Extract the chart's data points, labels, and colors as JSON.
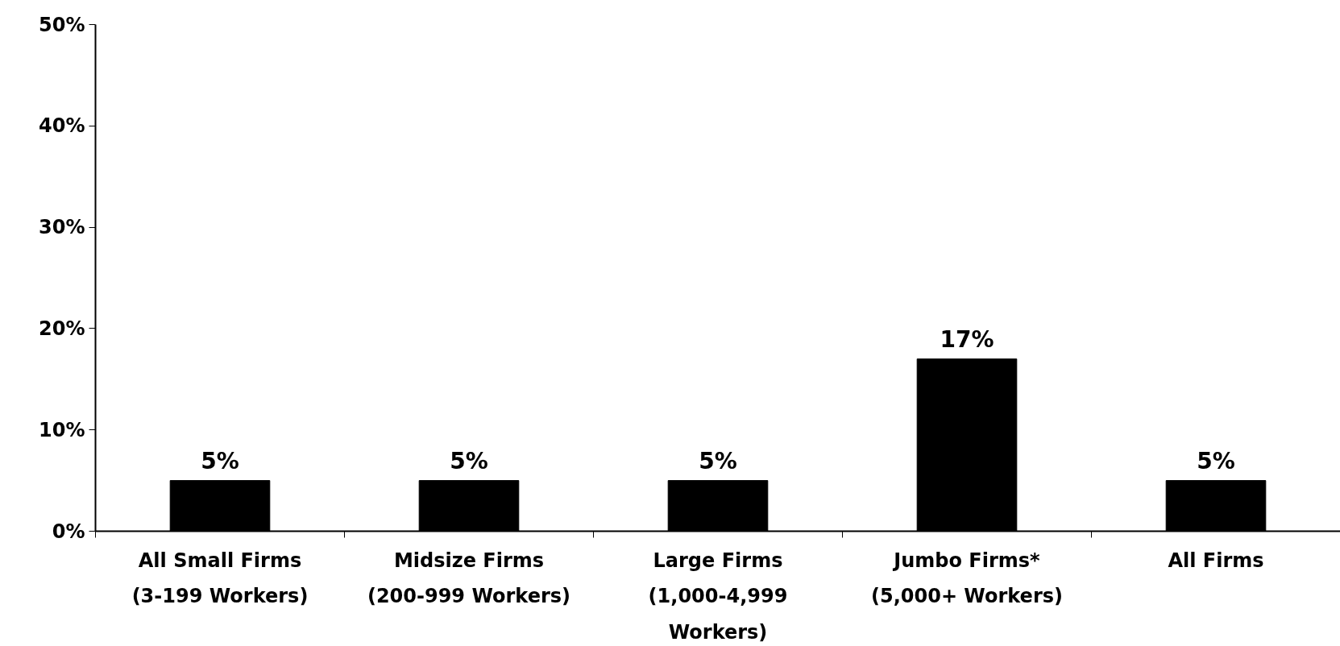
{
  "chart_data": {
    "type": "bar",
    "categories": [
      "All Small Firms\n(3-199 Workers)",
      "Midsize Firms\n(200-999 Workers)",
      "Large Firms\n(1,000-4,999\nWorkers)",
      "Jumbo Firms*\n(5,000+ Workers)",
      "All Firms"
    ],
    "values": [
      5,
      5,
      5,
      17,
      5
    ],
    "color": "#000000",
    "ylim": [
      0,
      50
    ],
    "yticks": [
      {
        "value": 0,
        "label": "0%"
      },
      {
        "value": 10,
        "label": "10%"
      },
      {
        "value": 20,
        "label": "20%"
      },
      {
        "value": 30,
        "label": "30%"
      },
      {
        "value": 40,
        "label": "40%"
      },
      {
        "value": 50,
        "label": "50%"
      }
    ],
    "value_labels": [
      "5%",
      "5%",
      "5%",
      "17%",
      "5%"
    ],
    "grid": false
  }
}
